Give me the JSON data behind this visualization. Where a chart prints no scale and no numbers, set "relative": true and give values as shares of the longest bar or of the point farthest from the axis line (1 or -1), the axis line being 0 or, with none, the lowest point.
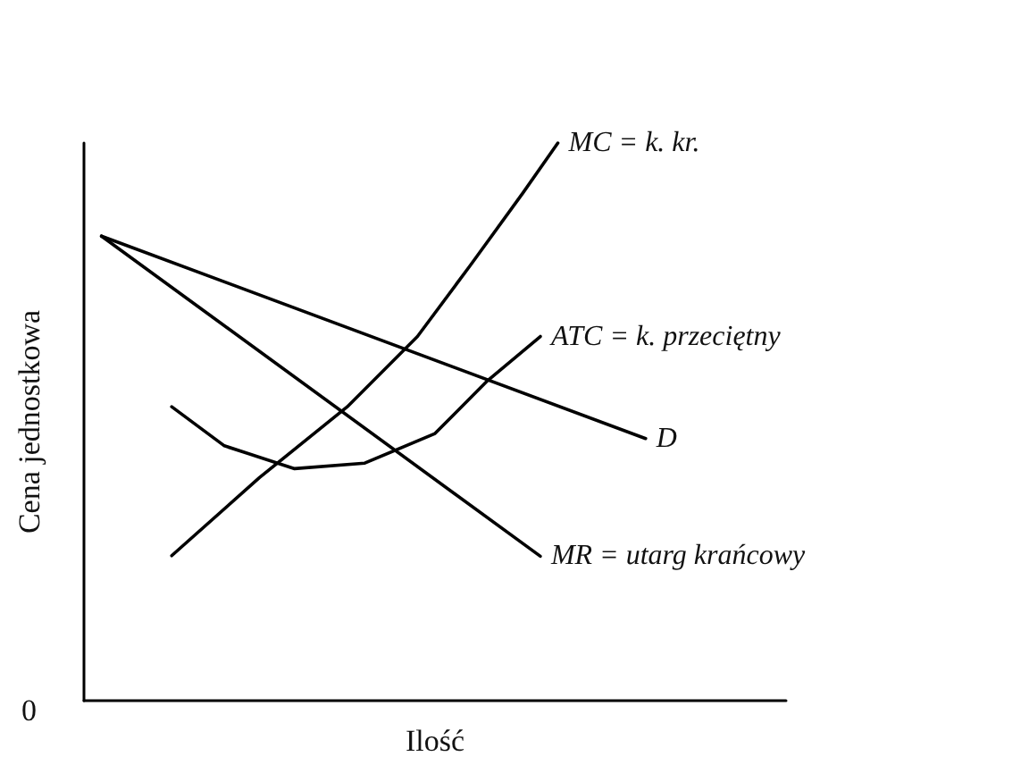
{
  "chart_data": {
    "type": "line",
    "relative": true,
    "xlabel": "Ilość",
    "ylabel": "Cena jednostkowa",
    "marker": "none",
    "line_style": "solid",
    "legend": false,
    "grid": false,
    "annotations": [
      "0"
    ],
    "categories": [
      null,
      null,
      null,
      null,
      null,
      null,
      null,
      null,
      null,
      null,
      null,
      null,
      null,
      null,
      null,
      null,
      null,
      null,
      null,
      null,
      null,
      null,
      null,
      null,
      null,
      null,
      null,
      null,
      null,
      null,
      null,
      null,
      null,
      null,
      null,
      null,
      null,
      null,
      null,
      null,
      null
    ],
    "series": [
      {
        "name": "MC = k. kr.",
        "color": "#000000",
        "values": [
          null,
          null,
          null,
          null,
          null,
          0.26,
          null,
          null,
          null,
          null,
          0.4,
          null,
          null,
          null,
          null,
          0.527,
          null,
          null,
          null,
          0.653,
          null,
          null,
          0.78,
          null,
          null,
          0.91,
          null,
          1,
          null,
          null,
          null,
          null,
          null,
          null,
          null,
          null,
          null,
          null,
          null,
          null,
          null
        ]
      },
      {
        "name": "ATC = k. przeciętny",
        "color": "#000000",
        "values": [
          null,
          null,
          null,
          null,
          null,
          0.527,
          null,
          null,
          0.457,
          null,
          null,
          null,
          0.416,
          null,
          null,
          null,
          0.426,
          null,
          null,
          null,
          0.479,
          null,
          null,
          0.574,
          null,
          null,
          0.653,
          null,
          null,
          null,
          null,
          null,
          null,
          null,
          null,
          null,
          null,
          null,
          null,
          null,
          null
        ]
      },
      {
        "name": "D",
        "color": "#000000",
        "values": [
          null,
          0.833,
          null,
          null,
          null,
          null,
          null,
          null,
          null,
          null,
          null,
          null,
          null,
          null,
          null,
          null,
          null,
          null,
          null,
          null,
          null,
          null,
          null,
          null,
          null,
          null,
          null,
          null,
          null,
          null,
          null,
          null,
          0.47,
          null,
          null,
          null,
          null,
          null,
          null,
          null,
          null
        ]
      },
      {
        "name": "MR = utarg krańcowy",
        "color": "#000000",
        "values": [
          null,
          0.833,
          null,
          null,
          null,
          null,
          null,
          null,
          null,
          null,
          null,
          null,
          null,
          null,
          null,
          null,
          null,
          null,
          null,
          null,
          null,
          null,
          null,
          null,
          null,
          null,
          0.259,
          null,
          null,
          null,
          null,
          null,
          null,
          null,
          null,
          null,
          null,
          null,
          null,
          null,
          null
        ]
      }
    ]
  }
}
